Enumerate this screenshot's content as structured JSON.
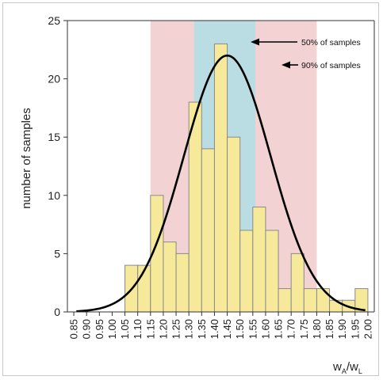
{
  "chart_data": {
    "type": "bar",
    "ylabel": "number of samples",
    "xlabel_main": "w",
    "xlabel_sub1": "A",
    "xlabel_sep": "/w",
    "xlabel_sub2": "L",
    "ylim": [
      0,
      25
    ],
    "yticks": [
      "0",
      "5",
      "10",
      "15",
      "20",
      "25"
    ],
    "xlim": [
      0.825,
      2.025
    ],
    "categories": [
      "0.85",
      "0.90",
      "0.95",
      "1.00",
      "1.05",
      "1.10",
      "1.15",
      "1.20",
      "1.25",
      "1.30",
      "1.35",
      "1.40",
      "1.45",
      "1.50",
      "1.55",
      "1.60",
      "1.65",
      "1.70",
      "1.75",
      "1.80",
      "1.85",
      "1.90",
      "1.95",
      "2.00"
    ],
    "bar_width": 0.05,
    "bars": [
      {
        "x": 1.075,
        "value": 4
      },
      {
        "x": 1.125,
        "value": 4
      },
      {
        "x": 1.175,
        "value": 10
      },
      {
        "x": 1.225,
        "value": 6
      },
      {
        "x": 1.275,
        "value": 5
      },
      {
        "x": 1.325,
        "value": 18
      },
      {
        "x": 1.375,
        "value": 14
      },
      {
        "x": 1.425,
        "value": 23
      },
      {
        "x": 1.475,
        "value": 15
      },
      {
        "x": 1.525,
        "value": 7
      },
      {
        "x": 1.575,
        "value": 9
      },
      {
        "x": 1.625,
        "value": 7
      },
      {
        "x": 1.675,
        "value": 2
      },
      {
        "x": 1.725,
        "value": 5
      },
      {
        "x": 1.775,
        "value": 2
      },
      {
        "x": 1.825,
        "value": 2
      },
      {
        "x": 1.875,
        "value": 1
      },
      {
        "x": 1.925,
        "value": 1
      },
      {
        "x": 1.975,
        "value": 2
      }
    ],
    "fit_curve": {
      "mean": 1.45,
      "sd": 0.17,
      "peak": 22
    },
    "band_90": {
      "from": 1.15,
      "to": 1.8,
      "color": "#f2d2d2",
      "label": "90% of samples"
    },
    "band_50": {
      "from": 1.32,
      "to": 1.56,
      "color": "#b9dde3",
      "label": "50% of samples"
    },
    "bar_color": "#f7e99a",
    "bar_stroke": "#8a8a8a",
    "curve_color": "#000000",
    "grid": false
  }
}
